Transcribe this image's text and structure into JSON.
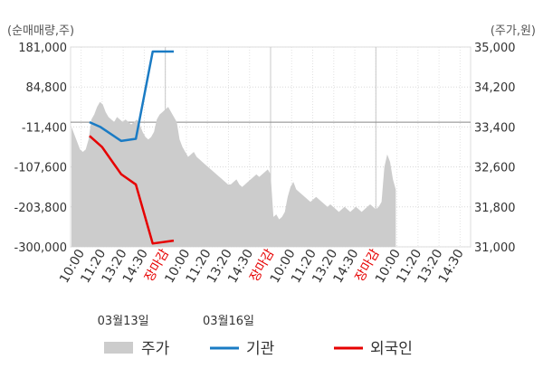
{
  "chart_data": {
    "type": "line",
    "left_axis_unit": "(순매매량,주)",
    "right_axis_unit": "(주가,원)",
    "left_ticks": [
      "181,000",
      "84,800",
      "-11,400",
      "-107,600",
      "-203,800",
      "-300,000"
    ],
    "right_ticks": [
      "35,000",
      "34,200",
      "33,400",
      "32,600",
      "31,800",
      "31,000"
    ],
    "left_ylim": [
      -300000,
      181000
    ],
    "right_ylim": [
      31000,
      35000
    ],
    "x_tick_labels": [
      {
        "text": "10:00",
        "color": "#333333"
      },
      {
        "text": "11:20",
        "color": "#333333"
      },
      {
        "text": "13:20",
        "color": "#333333"
      },
      {
        "text": "14:30",
        "color": "#333333"
      },
      {
        "text": "장마감",
        "color": "#e60000"
      },
      {
        "text": "10:00",
        "color": "#333333"
      },
      {
        "text": "11:20",
        "color": "#333333"
      },
      {
        "text": "13:20",
        "color": "#333333"
      },
      {
        "text": "14:30",
        "color": "#333333"
      },
      {
        "text": "장마감",
        "color": "#e60000"
      },
      {
        "text": "10:00",
        "color": "#333333"
      },
      {
        "text": "11:20",
        "color": "#333333"
      },
      {
        "text": "13:20",
        "color": "#333333"
      },
      {
        "text": "14:30",
        "color": "#333333"
      },
      {
        "text": "장마감",
        "color": "#e60000"
      },
      {
        "text": "10:00",
        "color": "#333333"
      },
      {
        "text": "11:20",
        "color": "#333333"
      },
      {
        "text": "13:20",
        "color": "#333333"
      },
      {
        "text": "14:30",
        "color": "#333333"
      }
    ],
    "date_labels": [
      {
        "text": "03월13일",
        "tick_index": 2
      },
      {
        "text": "03월16일",
        "tick_index": 7
      }
    ],
    "session_dividers": [
      4,
      9,
      14
    ],
    "baseline_value": 0,
    "price_series": {
      "name": "주가",
      "color": "#cccccc",
      "values": [
        33400,
        33250,
        33100,
        32950,
        32900,
        32950,
        33150,
        33550,
        33650,
        33800,
        33900,
        33850,
        33700,
        33600,
        33550,
        33500,
        33600,
        33550,
        33500,
        33550,
        33500,
        33450,
        33500,
        33550,
        33450,
        33300,
        33200,
        33150,
        33200,
        33300,
        33550,
        33650,
        33700,
        33750,
        33800,
        33700,
        33600,
        33500,
        33150,
        33000,
        32900,
        32800,
        32850,
        32900,
        32800,
        32750,
        32700,
        32650,
        32600,
        32550,
        32500,
        32450,
        32400,
        32350,
        32300,
        32250,
        32250,
        32300,
        32350,
        32250,
        32200,
        32250,
        32300,
        32350,
        32400,
        32450,
        32400,
        32450,
        32500,
        32550,
        32450,
        31600,
        31650,
        31550,
        31600,
        31700,
        32000,
        32200,
        32300,
        32150,
        32100,
        32050,
        32000,
        31950,
        31900,
        31950,
        32000,
        31950,
        31900,
        31850,
        31800,
        31850,
        31800,
        31750,
        31700,
        31750,
        31800,
        31750,
        31700,
        31750,
        31800,
        31750,
        31700,
        31750,
        31800,
        31850,
        31800,
        31750,
        31800,
        31900,
        32600,
        32850,
        32700,
        32350,
        32150
      ]
    },
    "series": [
      {
        "name": "기관",
        "color": "#1a7bc4",
        "points": [
          [
            0.4,
            0
          ],
          [
            0.9,
            -11000
          ],
          [
            1.9,
            -45000
          ],
          [
            2.6,
            -40000
          ],
          [
            3.4,
            170000
          ],
          [
            4.4,
            170000
          ]
        ]
      },
      {
        "name": "외국인",
        "color": "#e60000",
        "points": [
          [
            0.4,
            -33000
          ],
          [
            1.0,
            -60000
          ],
          [
            1.9,
            -125000
          ],
          [
            2.6,
            -150000
          ],
          [
            3.4,
            -292000
          ],
          [
            4.4,
            -285000
          ]
        ]
      }
    ],
    "grid": true,
    "legend_position": "bottom-center"
  }
}
